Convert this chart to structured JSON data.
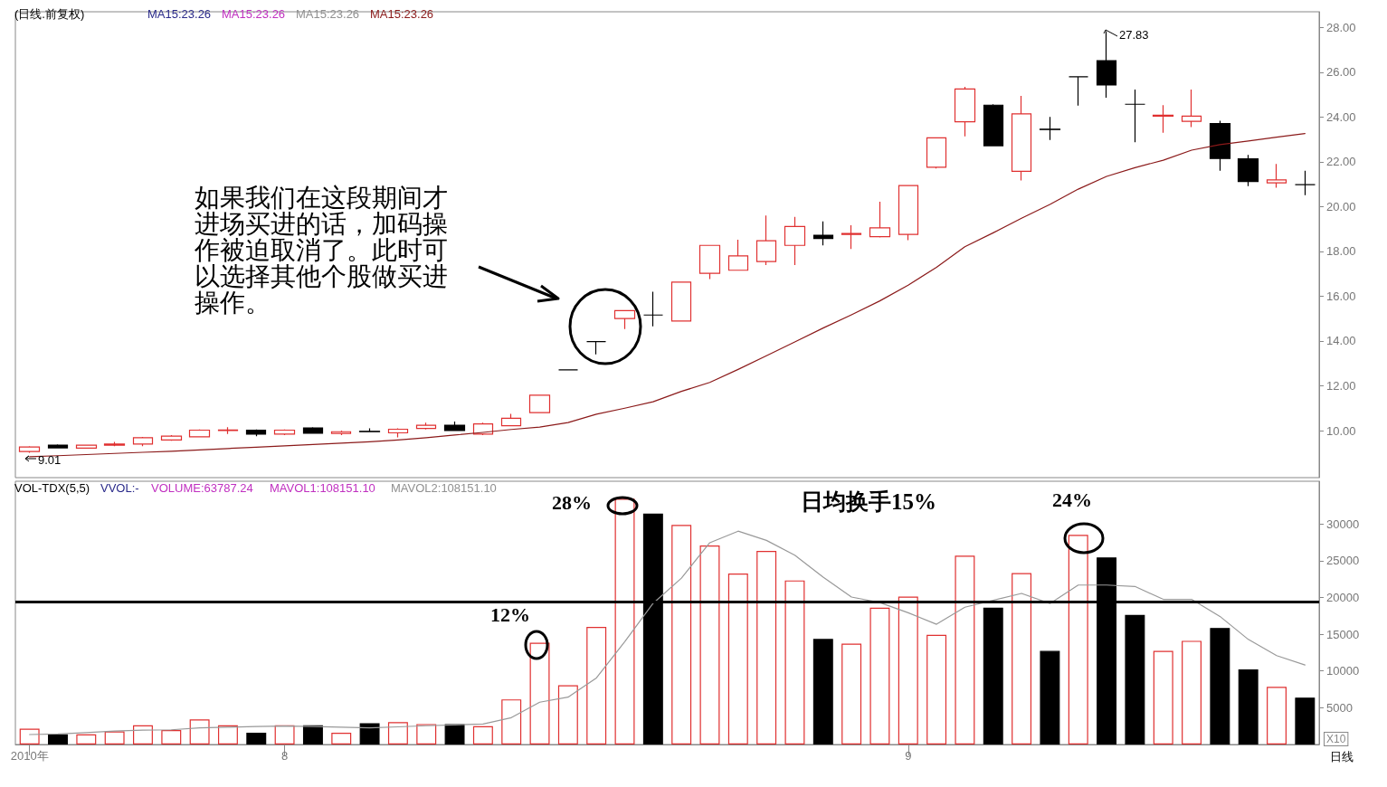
{
  "chart_data": [
    {
      "type": "candlestick",
      "title": "(日线.前复权)",
      "categories": [
        null,
        null,
        null,
        null,
        null,
        null,
        null,
        null,
        null,
        null,
        null,
        null,
        null,
        null,
        null,
        null,
        null,
        null,
        null,
        null,
        null,
        null,
        null,
        null,
        null,
        null,
        null,
        null,
        null,
        null,
        null,
        null,
        null,
        null,
        null,
        null,
        null,
        null,
        null,
        null,
        null,
        null,
        null,
        null,
        null,
        null
      ],
      "ohlc": [
        [
          9.07,
          9.3,
          9.01,
          9.27
        ],
        [
          9.35,
          9.38,
          9.2,
          9.23
        ],
        [
          9.22,
          9.37,
          9.2,
          9.35
        ],
        [
          9.35,
          9.5,
          9.3,
          9.4
        ],
        [
          9.4,
          9.72,
          9.3,
          9.68
        ],
        [
          9.58,
          9.8,
          9.55,
          9.75
        ],
        [
          9.72,
          10.05,
          9.7,
          10.02
        ],
        [
          10.0,
          10.15,
          9.85,
          10.03
        ],
        [
          10.02,
          10.05,
          9.75,
          9.84
        ],
        [
          9.84,
          10.05,
          9.8,
          10.02
        ],
        [
          10.12,
          10.15,
          9.86,
          9.88
        ],
        [
          9.87,
          10.0,
          9.8,
          9.95
        ],
        [
          9.97,
          10.1,
          9.93,
          9.95
        ],
        [
          9.9,
          10.1,
          9.7,
          10.06
        ],
        [
          10.1,
          10.35,
          10.05,
          10.24
        ],
        [
          10.24,
          10.4,
          9.98,
          10.0
        ],
        [
          9.84,
          10.35,
          9.8,
          10.3
        ],
        [
          10.22,
          10.75,
          10.2,
          10.55
        ],
        [
          10.8,
          11.58,
          10.8,
          11.58
        ],
        [
          12.71,
          12.71,
          12.71,
          12.71
        ],
        [
          13.97,
          13.97,
          13.4,
          13.97
        ],
        [
          15.0,
          15.36,
          14.53,
          15.36
        ],
        [
          15.16,
          16.2,
          14.65,
          15.16
        ],
        [
          14.89,
          16.63,
          14.89,
          16.63
        ],
        [
          17.02,
          18.27,
          16.77,
          18.27
        ],
        [
          17.16,
          18.52,
          17.16,
          17.8
        ],
        [
          17.55,
          19.6,
          17.39,
          18.48
        ],
        [
          18.27,
          19.54,
          17.39,
          19.11
        ],
        [
          18.72,
          19.34,
          18.27,
          18.58
        ],
        [
          18.76,
          19.17,
          18.11,
          18.8
        ],
        [
          18.66,
          20.22,
          18.62,
          19.05
        ],
        [
          18.76,
          20.94,
          18.5,
          20.94
        ],
        [
          21.76,
          23.07,
          21.7,
          23.07
        ],
        [
          23.79,
          25.35,
          23.14,
          25.25
        ],
        [
          24.53,
          24.57,
          22.72,
          22.72
        ],
        [
          21.58,
          24.94,
          21.17,
          24.14
        ],
        [
          23.46,
          24.0,
          22.97,
          23.44
        ],
        [
          25.8,
          25.8,
          24.51,
          25.8
        ],
        [
          26.52,
          27.83,
          24.86,
          25.43
        ],
        [
          24.57,
          25.23,
          22.87,
          24.57
        ],
        [
          24.04,
          24.53,
          23.3,
          24.08
        ],
        [
          23.81,
          25.23,
          23.55,
          24.04
        ],
        [
          23.71,
          23.83,
          21.6,
          22.15
        ],
        [
          22.13,
          22.31,
          20.92,
          21.12
        ],
        [
          21.06,
          21.9,
          20.84,
          21.19
        ],
        [
          20.98,
          21.6,
          20.51,
          20.98
        ]
      ],
      "colors": [
        "#e03030",
        "#000000",
        "#e03030",
        "#e03030",
        "#e03030",
        "#e03030",
        "#e03030",
        "#e03030",
        "#000000",
        "#e03030",
        "#000000",
        "#e03030",
        "#000000",
        "#e03030",
        "#e03030",
        "#000000",
        "#e03030",
        "#e03030",
        "#e03030",
        "#000000",
        "#000000",
        "#e03030",
        "#000000",
        "#e03030",
        "#e03030",
        "#e03030",
        "#e03030",
        "#e03030",
        "#000000",
        "#e03030",
        "#e03030",
        "#e03030",
        "#e03030",
        "#e03030",
        "#000000",
        "#e03030",
        "#000000",
        "#000000",
        "#000000",
        "#000000",
        "#e03030",
        "#e03030",
        "#000000",
        "#000000",
        "#e03030",
        "#000000"
      ],
      "series": [
        {
          "type": "line",
          "color": "#8b1a1a",
          "values": [
            8.83,
            8.88,
            8.93,
            8.98,
            9.03,
            9.08,
            9.14,
            9.2,
            9.26,
            9.32,
            9.38,
            9.44,
            9.5,
            9.58,
            9.68,
            9.8,
            9.92,
            10.05,
            10.16,
            10.36,
            10.73,
            11.0,
            11.29,
            11.75,
            12.15,
            12.73,
            13.34,
            13.96,
            14.58,
            15.17,
            15.79,
            16.49,
            17.29,
            18.21,
            18.83,
            19.48,
            20.1,
            20.78,
            21.35,
            21.74,
            22.07,
            22.52,
            22.77,
            22.93,
            23.1,
            23.26
          ]
        }
      ],
      "ylim": [
        7.9,
        28.7
      ],
      "yticks": [
        {
          "value": 10,
          "label": "10.00"
        },
        {
          "value": 12,
          "label": "12.00"
        },
        {
          "value": 14,
          "label": "14.00"
        },
        {
          "value": 16,
          "label": "16.00"
        },
        {
          "value": 18,
          "label": "18.00"
        },
        {
          "value": 20,
          "label": "20.00"
        },
        {
          "value": 22,
          "label": "22.00"
        },
        {
          "value": 24,
          "label": "24.00"
        },
        {
          "value": 26,
          "label": "26.00"
        },
        {
          "value": 28,
          "label": "28.00"
        }
      ],
      "tick_labels": "y",
      "annotations": [
        "MA15:23.26",
        "MA15:23.26",
        "MA15:23.26",
        "MA15:23.26",
        "如果我们在这段期间才进场买进的话，加码操作被迫取消了。此时可以选择其他个股做买进操作。",
        "27.83",
        "9.01"
      ]
    },
    {
      "type": "bar",
      "categories": [
        "2010年",
        null,
        null,
        null,
        null,
        null,
        null,
        null,
        null,
        "8",
        null,
        null,
        null,
        null,
        null,
        null,
        null,
        null,
        null,
        null,
        null,
        null,
        null,
        null,
        null,
        null,
        null,
        null,
        null,
        null,
        null,
        "9",
        null,
        null,
        null,
        null,
        null,
        null,
        null,
        null,
        null,
        null,
        null,
        null,
        null,
        null
      ],
      "series": [
        {
          "values": [
            2140,
            1370,
            1370,
            1790,
            2610,
            1960,
            3400,
            2610,
            1600,
            2610,
            2610,
            1600,
            2900,
            3030,
            2780,
            2780,
            2500,
            6130,
            13840,
            8050,
            15990,
            33420,
            31390,
            29850,
            27070,
            23250,
            26320,
            22310,
            14350,
            13720,
            18610,
            20110,
            14910,
            25690,
            18610,
            23310,
            12720,
            28510,
            25440,
            17610,
            12720,
            14100,
            15850,
            10210,
            7830,
            6379
          ],
          "colors": [
            "#e03030",
            "#000000",
            "#e03030",
            "#e03030",
            "#e03030",
            "#e03030",
            "#e03030",
            "#e03030",
            "#000000",
            "#e03030",
            "#000000",
            "#e03030",
            "#000000",
            "#e03030",
            "#e03030",
            "#000000",
            "#e03030",
            "#e03030",
            "#e03030",
            "#e03030",
            "#e03030",
            "#e03030",
            "#000000",
            "#e03030",
            "#e03030",
            "#e03030",
            "#e03030",
            "#e03030",
            "#000000",
            "#e03030",
            "#e03030",
            "#e03030",
            "#e03030",
            "#e03030",
            "#000000",
            "#e03030",
            "#000000",
            "#e03030",
            "#000000",
            "#000000",
            "#e03030",
            "#e03030",
            "#000000",
            "#000000",
            "#e03030",
            "#000000"
          ]
        },
        {
          "type": "line",
          "color": "#999999",
          "values": [
            1355,
            1440,
            1616,
            1823,
            1950,
            2000,
            2250,
            2350,
            2450,
            2500,
            2450,
            2350,
            2250,
            2400,
            2550,
            2670,
            2780,
            3650,
            5750,
            6440,
            9050,
            13990,
            19200,
            22620,
            27440,
            29010,
            27760,
            25750,
            22750,
            20050,
            19300,
            17920,
            16350,
            18670,
            19610,
            20550,
            19170,
            21680,
            21680,
            21490,
            19740,
            19740,
            17420,
            14290,
            12090,
            10815
          ]
        }
      ],
      "ylim": [
        0,
        35800
      ],
      "yticks": [
        5000,
        10000,
        15000,
        20000,
        25000,
        30000
      ],
      "ref_lines": [
        {
          "axis": "y",
          "value": 19400,
          "color": "#000000"
        }
      ],
      "annotations": [
        "VOL-TDX(5,5)",
        "VVOL:-",
        "VOLUME:63787.24",
        "MAVOL1:108151.10",
        "MAVOL2:108151.10",
        "28%",
        "12%",
        "24%",
        "日均换手15%",
        "X10",
        "日线"
      ]
    }
  ]
}
